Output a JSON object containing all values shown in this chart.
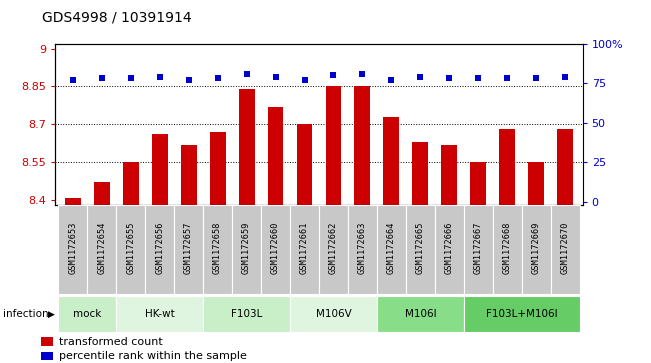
{
  "title": "GDS4998 / 10391914",
  "samples": [
    "GSM1172653",
    "GSM1172654",
    "GSM1172655",
    "GSM1172656",
    "GSM1172657",
    "GSM1172658",
    "GSM1172659",
    "GSM1172660",
    "GSM1172661",
    "GSM1172662",
    "GSM1172663",
    "GSM1172664",
    "GSM1172665",
    "GSM1172666",
    "GSM1172667",
    "GSM1172668",
    "GSM1172669",
    "GSM1172670"
  ],
  "bar_values": [
    8.41,
    8.47,
    8.55,
    8.66,
    8.62,
    8.67,
    8.84,
    8.77,
    8.7,
    8.85,
    8.85,
    8.73,
    8.63,
    8.62,
    8.55,
    8.68,
    8.55,
    8.68
  ],
  "dot_values": [
    77,
    78,
    78,
    79,
    77,
    78,
    81,
    79,
    77,
    80,
    81,
    77,
    79,
    78,
    78,
    78,
    78,
    79
  ],
  "groups": [
    {
      "label": "mock",
      "start": 0,
      "end": 2,
      "color": "#c8efc8"
    },
    {
      "label": "HK-wt",
      "start": 2,
      "end": 5,
      "color": "#e0f5e0"
    },
    {
      "label": "F103L",
      "start": 5,
      "end": 8,
      "color": "#c8efc8"
    },
    {
      "label": "M106V",
      "start": 8,
      "end": 11,
      "color": "#e0f5e0"
    },
    {
      "label": "M106I",
      "start": 11,
      "end": 14,
      "color": "#88dd88"
    },
    {
      "label": "F103L+M106I",
      "start": 14,
      "end": 18,
      "color": "#66cc66"
    }
  ],
  "ylim_left": [
    8.38,
    9.02
  ],
  "ylim_right": [
    -2,
    100
  ],
  "yticks_left": [
    8.4,
    8.55,
    8.7,
    8.85,
    9.0
  ],
  "ytick_labels_left": [
    "8.4",
    "8.55",
    "8.7",
    "8.85",
    "9"
  ],
  "yticks_right": [
    0,
    25,
    50,
    75,
    100
  ],
  "ytick_labels_right": [
    "0",
    "25",
    "50",
    "75",
    "100%"
  ],
  "hlines": [
    8.55,
    8.7,
    8.85
  ],
  "bar_color": "#cc0000",
  "dot_color": "#0000cc",
  "bar_bottom": 8.38,
  "legend_red": "transformed count",
  "legend_blue": "percentile rank within the sample",
  "bar_width": 0.55,
  "sample_bg_color": "#c8c8c8",
  "sample_border_color": "#ffffff"
}
